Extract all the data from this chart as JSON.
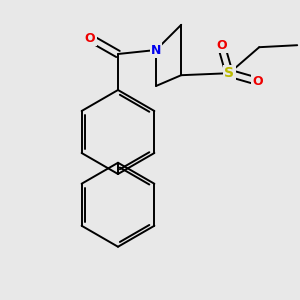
{
  "background_color": "#e8e8e8",
  "bond_color": "#000000",
  "figsize": [
    3.0,
    3.0
  ],
  "dpi": 100,
  "atom_colors": {
    "N": "#0000ee",
    "O": "#ee0000",
    "S": "#bbbb00",
    "C": "#000000"
  },
  "bond_lw": 1.4,
  "font_size_atom": 9
}
